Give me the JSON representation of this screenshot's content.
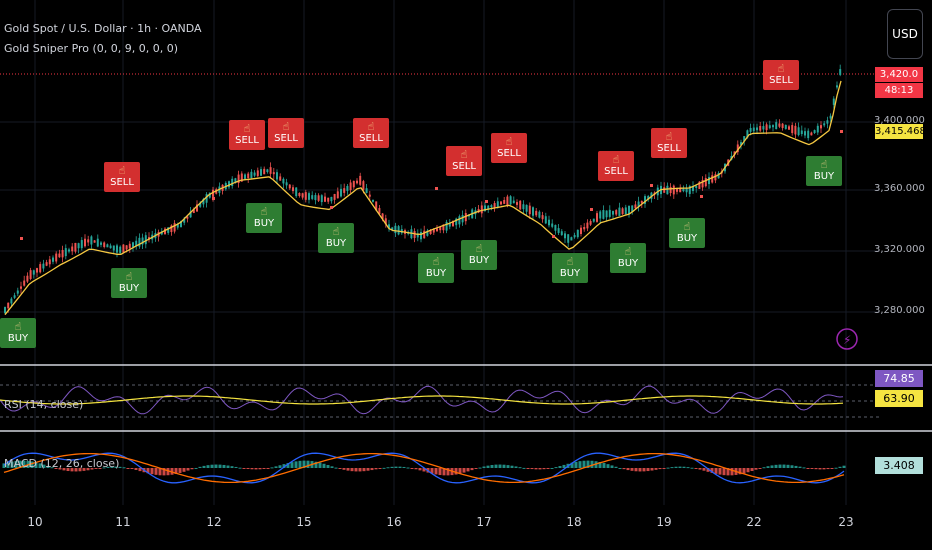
{
  "header": {
    "symbol_title": "Gold Spot / U.S. Dollar · 1h · OANDA",
    "indicator_title": "Gold Sniper Pro (0, 0, 9, 0, 0, 0)",
    "currency_button": "USD"
  },
  "price_axis": {
    "ticks": [
      "3,400.000",
      "3,360.000",
      "3,320.000",
      "3,280.000"
    ],
    "last_price": "3,420.0",
    "countdown": "48:13",
    "ma_value": "3,415.468"
  },
  "signals": {
    "sell_label": "SELL",
    "buy_label": "BUY",
    "hand_icon": "hand-pointing-icon"
  },
  "rsi_pane": {
    "label": "RSI (14, close)",
    "rsi_value": "74.85",
    "ma_value": "63.90",
    "rsi_color": "#7e57c2",
    "ma_color": "#f5e441"
  },
  "macd_pane": {
    "label": "MACD (12, 26, close)",
    "value": "3.408",
    "macd_color": "#2962ff",
    "signal_color": "#ff6d00"
  },
  "time_axis": {
    "labels": [
      "10",
      "11",
      "12",
      "15",
      "16",
      "17",
      "18",
      "19",
      "22",
      "23"
    ]
  },
  "colors": {
    "up": "#26a69a",
    "down": "#ef5350",
    "ma_line": "#f5c842",
    "sell_bg": "#d32f2f",
    "buy_bg": "#2e7d32"
  }
}
